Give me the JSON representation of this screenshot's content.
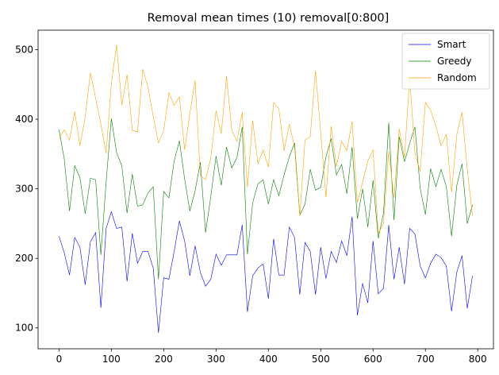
{
  "chart_data": {
    "type": "line",
    "title": "Removal mean times (10) removal[0:800]",
    "xlabel": "",
    "ylabel": "",
    "xlim": [
      -40,
      830
    ],
    "ylim": [
      70,
      528
    ],
    "xticks": [
      0,
      100,
      200,
      300,
      400,
      500,
      600,
      700,
      800
    ],
    "yticks": [
      100,
      200,
      300,
      400,
      500
    ],
    "grid": false,
    "legend_position": "top-right",
    "x": [
      0,
      10,
      20,
      30,
      40,
      50,
      60,
      70,
      80,
      90,
      100,
      110,
      120,
      130,
      140,
      150,
      160,
      170,
      180,
      190,
      200,
      210,
      220,
      230,
      240,
      250,
      260,
      270,
      280,
      290,
      300,
      310,
      320,
      330,
      340,
      350,
      360,
      370,
      380,
      390,
      400,
      410,
      420,
      430,
      440,
      450,
      460,
      470,
      480,
      490,
      500,
      510,
      520,
      530,
      540,
      550,
      560,
      570,
      580,
      590,
      600,
      610,
      620,
      630,
      640,
      650,
      660,
      670,
      680,
      690,
      700,
      710,
      720,
      730,
      740,
      750,
      760,
      770,
      780,
      790
    ],
    "series": [
      {
        "name": "Smart",
        "color": "#0000ff",
        "values": [
          232,
          208,
          176,
          230,
          216,
          162,
          224,
          237,
          129,
          243,
          267,
          243,
          245,
          167,
          236,
          193,
          210,
          210,
          186,
          93,
          172,
          170,
          210,
          254,
          225,
          175,
          218,
          180,
          160,
          170,
          206,
          190,
          205,
          205,
          205,
          248,
          123,
          175,
          186,
          192,
          142,
          228,
          176,
          176,
          245,
          230,
          148,
          223,
          210,
          148,
          216,
          171,
          210,
          194,
          225,
          204,
          260,
          118,
          164,
          136,
          225,
          149,
          157,
          248,
          170,
          216,
          163,
          243,
          235,
          189,
          172,
          193,
          206,
          201,
          189,
          124,
          180,
          204,
          128,
          175
        ]
      },
      {
        "name": "Greedy",
        "color": "#008000",
        "values": [
          385,
          343,
          268,
          333,
          316,
          264,
          315,
          313,
          205,
          310,
          401,
          352,
          333,
          265,
          321,
          275,
          277,
          294,
          303,
          170,
          296,
          287,
          340,
          369,
          314,
          268,
          297,
          338,
          237,
          289,
          347,
          305,
          360,
          330,
          345,
          389,
          206,
          280,
          307,
          313,
          278,
          313,
          290,
          320,
          346,
          366,
          262,
          278,
          328,
          298,
          302,
          346,
          372,
          320,
          335,
          293,
          360,
          257,
          300,
          245,
          312,
          229,
          265,
          395,
          255,
          375,
          339,
          365,
          389,
          301,
          263,
          329,
          303,
          328,
          303,
          232,
          305,
          336,
          250,
          277
        ]
      },
      {
        "name": "Random",
        "color": "#ffa500",
        "values": [
          372,
          385,
          370,
          411,
          362,
          403,
          467,
          430,
          393,
          351,
          451,
          507,
          420,
          464,
          384,
          382,
          472,
          446,
          404,
          366,
          384,
          438,
          420,
          432,
          356,
          408,
          456,
          319,
          313,
          344,
          412,
          379,
          462,
          385,
          368,
          410,
          302,
          398,
          336,
          356,
          331,
          424,
          415,
          355,
          393,
          360,
          261,
          370,
          375,
          470,
          380,
          288,
          390,
          332,
          368,
          355,
          397,
          280,
          310,
          340,
          356,
          236,
          250,
          354,
          287,
          386,
          345,
          460,
          351,
          325,
          424,
          413,
          390,
          362,
          378,
          295,
          378,
          410,
          328,
          261
        ]
      }
    ]
  }
}
